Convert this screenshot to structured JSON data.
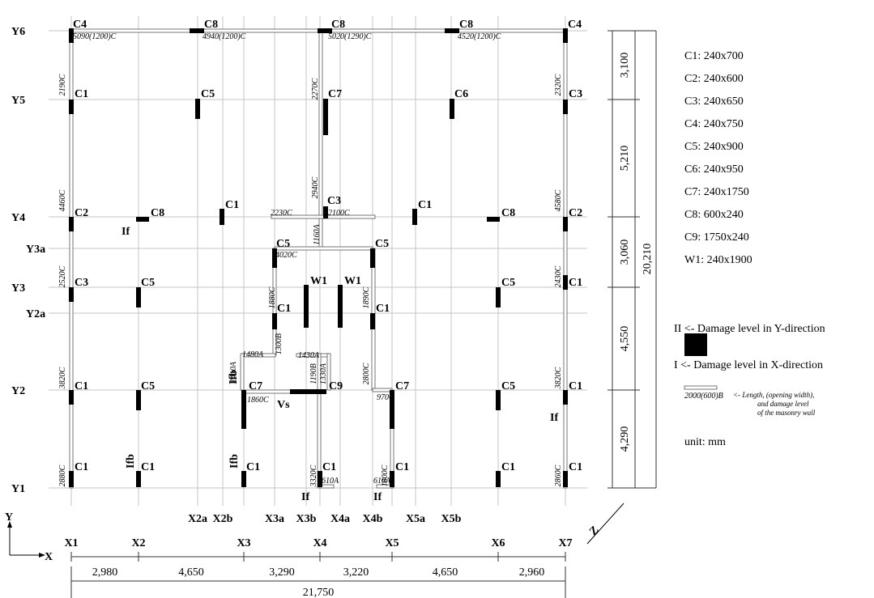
{
  "grid_x": [
    "X1",
    "X2",
    "X2a",
    "X2b",
    "X3",
    "X3a",
    "X3b",
    "X4",
    "X4a",
    "X4b",
    "X5",
    "X5a",
    "X5b",
    "X6",
    "X7"
  ],
  "grid_y": [
    "Y6",
    "Y5",
    "Y4",
    "Y3a",
    "Y3",
    "Y2a",
    "Y2",
    "Y1"
  ],
  "columns": [
    "C4",
    "C8",
    "C8",
    "C8",
    "C4",
    "C1",
    "C5",
    "C7",
    "C6",
    "C3",
    "C2",
    "C8",
    "C1",
    "C3",
    "C1",
    "C8",
    "C2",
    "C5",
    "C5",
    "C3",
    "C5",
    "W1",
    "W1",
    "C5",
    "C1",
    "C1",
    "C1",
    "C1",
    "C5",
    "C7",
    "C9",
    "C7",
    "C5",
    "C1",
    "C1",
    "C1",
    "C1",
    "C1",
    "C1",
    "C1",
    "C1"
  ],
  "walls": [
    "5090(1200)C",
    "4940(1200)C",
    "5020(1290)C",
    "4520(1200)C",
    "2190C",
    "2320C",
    "2270C",
    "4460C",
    "4580C",
    "2940C",
    "2230C",
    "2100C",
    "1160A",
    "4020C",
    "2520C",
    "2430C",
    "1880C",
    "1890C",
    "1480A",
    "1300B",
    "1410A",
    "1430A",
    "1190B",
    "1330A",
    "3820C",
    "3820C",
    "2800C",
    "1860C",
    "970C",
    "2880C",
    "3320C",
    "1800C",
    "2860C",
    "610A",
    "610A"
  ],
  "damage_marks": [
    "If",
    "Vs",
    "If",
    "If",
    "If",
    "Ifb",
    "Ifb",
    "Ifb"
  ],
  "dims_x": [
    "2,980",
    "4,650",
    "3,290",
    "3,220",
    "4,650",
    "2,960"
  ],
  "dim_x_total": "21,750",
  "dims_y": [
    "3,100",
    "5,210",
    "3,060",
    "4,550",
    "4,290"
  ],
  "dim_y_total": "20,210",
  "legend": {
    "sections": [
      "C1: 240x700",
      "C2: 240x600",
      "C3: 240x650",
      "C4: 240x750",
      "C5: 240x900",
      "C6: 240x950",
      "C7: 240x1750",
      "C8: 600x240",
      "C9: 1750x240",
      "W1: 240x1900"
    ],
    "damage_y": "II <- Damage level in Y-direction",
    "damage_x": "I  <- Damage level in X-direction",
    "wall_sample": "2000(600)B",
    "wall_note": [
      "<- Length, (opening width),",
      "and damage level",
      "of the masonry wall"
    ],
    "unit": "unit: mm"
  },
  "axes": {
    "y": "Y",
    "x": "X",
    "z": "Z"
  }
}
